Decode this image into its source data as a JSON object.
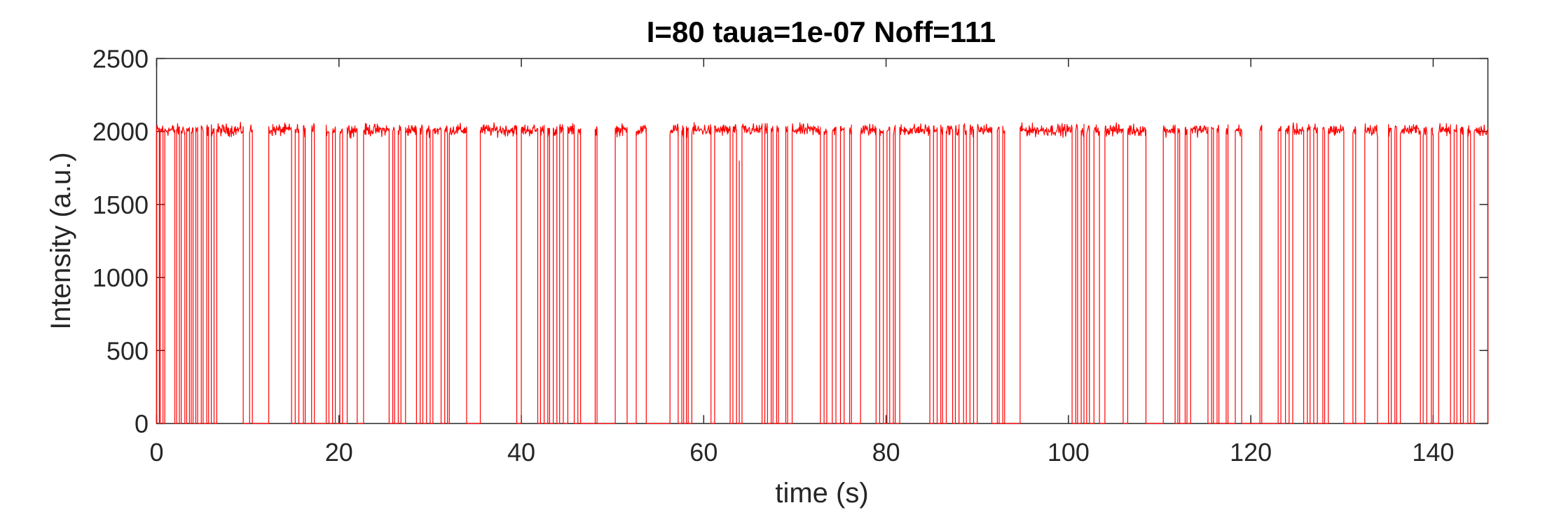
{
  "chart_data": {
    "type": "line",
    "title": "I=80 taua=1e-07 Noff=111",
    "xlabel": "time (s)",
    "ylabel": "Intensity (a.u.)",
    "xlim": [
      0,
      146
    ],
    "ylim": [
      0,
      2500
    ],
    "xticks": [
      0,
      20,
      40,
      60,
      80,
      100,
      120,
      140
    ],
    "yticks": [
      0,
      500,
      1000,
      1500,
      2000,
      2500
    ],
    "grid": false,
    "legend": "none",
    "series": [
      {
        "color": "#ff0000",
        "on_level": 2010,
        "off_level": 0,
        "on_intervals": [
          [
            0.0,
            0.3
          ],
          [
            0.4,
            0.7
          ],
          [
            0.9,
            2.0
          ],
          [
            2.2,
            2.5
          ],
          [
            2.7,
            3.1
          ],
          [
            3.3,
            3.6
          ],
          [
            3.8,
            4.0
          ],
          [
            4.3,
            4.5
          ],
          [
            4.9,
            5.1
          ],
          [
            5.5,
            5.7
          ],
          [
            6.0,
            6.3
          ],
          [
            6.6,
            9.5
          ],
          [
            10.2,
            10.5
          ],
          [
            12.3,
            14.8
          ],
          [
            15.2,
            15.6
          ],
          [
            16.1,
            16.3
          ],
          [
            17.0,
            17.3
          ],
          [
            18.6,
            18.9
          ],
          [
            19.3,
            19.6
          ],
          [
            20.1,
            20.4
          ],
          [
            20.9,
            22.0
          ],
          [
            22.7,
            25.5
          ],
          [
            25.9,
            26.1
          ],
          [
            26.5,
            26.8
          ],
          [
            27.3,
            28.5
          ],
          [
            28.9,
            29.2
          ],
          [
            29.6,
            30.0
          ],
          [
            30.3,
            31.2
          ],
          [
            31.6,
            31.9
          ],
          [
            32.1,
            34.0
          ],
          [
            35.5,
            39.5
          ],
          [
            40.0,
            41.8
          ],
          [
            42.1,
            42.5
          ],
          [
            42.9,
            43.1
          ],
          [
            43.5,
            43.9
          ],
          [
            44.2,
            44.6
          ],
          [
            45.1,
            45.8
          ],
          [
            46.2,
            46.5
          ],
          [
            48.1,
            48.3
          ],
          [
            50.3,
            51.6
          ],
          [
            52.6,
            53.7
          ],
          [
            56.3,
            57.2
          ],
          [
            57.6,
            57.8
          ],
          [
            58.1,
            58.3
          ],
          [
            58.7,
            60.8
          ],
          [
            61.2,
            62.9
          ],
          [
            63.2,
            63.6
          ],
          [
            64.2,
            66.4
          ],
          [
            66.7,
            67.0
          ],
          [
            67.4,
            67.6
          ],
          [
            68.0,
            68.2
          ],
          [
            69.0,
            69.2
          ],
          [
            69.7,
            72.8
          ],
          [
            73.2,
            73.5
          ],
          [
            74.1,
            74.5
          ],
          [
            75.0,
            75.4
          ],
          [
            76.0,
            76.2
          ],
          [
            77.2,
            78.9
          ],
          [
            79.3,
            79.7
          ],
          [
            80.1,
            80.4
          ],
          [
            80.8,
            81.0
          ],
          [
            81.5,
            84.8
          ],
          [
            85.2,
            85.6
          ],
          [
            86.0,
            86.2
          ],
          [
            86.6,
            87.3
          ],
          [
            87.6,
            88.0
          ],
          [
            88.5,
            88.8
          ],
          [
            89.2,
            89.6
          ],
          [
            90.0,
            91.6
          ],
          [
            92.2,
            92.4
          ],
          [
            92.8,
            93.0
          ],
          [
            94.7,
            100.4
          ],
          [
            100.8,
            101.0
          ],
          [
            101.4,
            101.7
          ],
          [
            102.0,
            102.3
          ],
          [
            102.8,
            103.4
          ],
          [
            104.0,
            106.0
          ],
          [
            106.5,
            108.5
          ],
          [
            110.4,
            111.7
          ],
          [
            112.0,
            112.2
          ],
          [
            112.8,
            113.0
          ],
          [
            113.4,
            115.3
          ],
          [
            115.7,
            115.9
          ],
          [
            116.3,
            116.5
          ],
          [
            117.3,
            117.5
          ],
          [
            118.3,
            119.0
          ],
          [
            121.0,
            121.2
          ],
          [
            123.0,
            123.3
          ],
          [
            123.8,
            124.2
          ],
          [
            124.6,
            125.8
          ],
          [
            126.2,
            126.5
          ],
          [
            126.9,
            127.3
          ],
          [
            127.9,
            128.1
          ],
          [
            128.5,
            130.2
          ],
          [
            131.2,
            131.5
          ],
          [
            132.5,
            133.9
          ],
          [
            135.1,
            135.4
          ],
          [
            135.8,
            136.0
          ],
          [
            136.4,
            138.6
          ],
          [
            138.9,
            139.3
          ],
          [
            139.8,
            140.0
          ],
          [
            140.6,
            141.9
          ],
          [
            142.3,
            142.6
          ],
          [
            143.0,
            143.3
          ],
          [
            143.8,
            144.1
          ],
          [
            144.5,
            146.0
          ]
        ],
        "spikes": [
          [
            63.9,
            1800
          ]
        ]
      }
    ]
  }
}
